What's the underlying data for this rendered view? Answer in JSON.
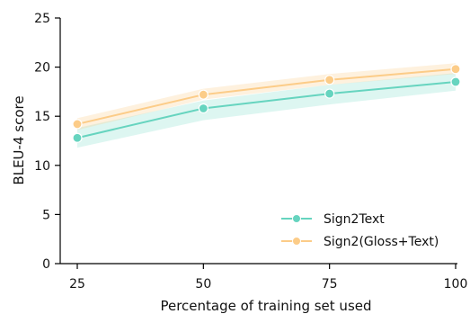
{
  "chart_data": {
    "type": "line",
    "title": "",
    "xlabel": "Percentage of training set used",
    "ylabel": "BLEU-4 score",
    "x": [
      25,
      50,
      75,
      100
    ],
    "x_ticks": [
      "25",
      "50",
      "75",
      "100"
    ],
    "y_ticks": [
      "0",
      "5",
      "10",
      "15",
      "20",
      "25"
    ],
    "xlim": [
      25,
      100
    ],
    "ylim": [
      0,
      25
    ],
    "grid": false,
    "legend_position": "lower-right",
    "series": [
      {
        "name": "Sign2Text",
        "values": [
          12.8,
          15.8,
          17.3,
          18.5
        ],
        "band_low": [
          11.8,
          14.6,
          16.2,
          17.6
        ],
        "band_high": [
          13.8,
          16.6,
          18.2,
          19.4
        ],
        "color": "#66d4bf"
      },
      {
        "name": "Sign2(Gloss+Text)",
        "values": [
          14.2,
          17.2,
          18.7,
          19.8
        ],
        "band_low": [
          13.6,
          16.7,
          18.2,
          19.3
        ],
        "band_high": [
          14.8,
          17.8,
          19.3,
          20.4
        ],
        "color": "#fccc88"
      }
    ]
  }
}
